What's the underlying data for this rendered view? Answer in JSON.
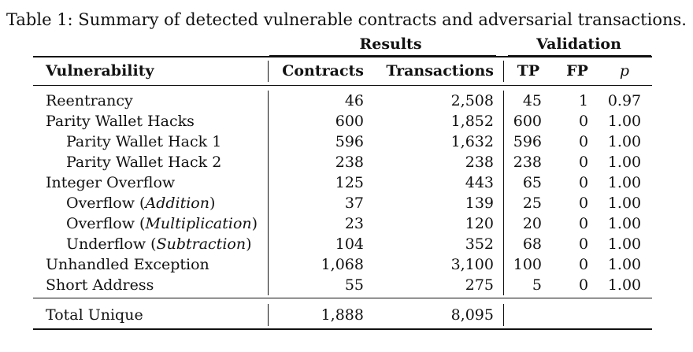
{
  "caption": "Table 1: Summary of detected vulnerable contracts and adversarial transactions.",
  "groups": {
    "results": "Results",
    "validation": "Validation"
  },
  "headers": {
    "vulnerability": "Vulnerability",
    "contracts": "Contracts",
    "transactions": "Transactions",
    "tp": "TP",
    "fp": "FP",
    "p": "p"
  },
  "rows": [
    {
      "name": "Reentrancy",
      "indent": false,
      "contracts": "46",
      "transactions": "2,508",
      "tp": "45",
      "fp": "1",
      "p": "0.97"
    },
    {
      "name": "Parity Wallet Hacks",
      "indent": false,
      "contracts": "600",
      "transactions": "1,852",
      "tp": "600",
      "fp": "0",
      "p": "1.00"
    },
    {
      "name": "Parity Wallet Hack 1",
      "indent": true,
      "contracts": "596",
      "transactions": "1,632",
      "tp": "596",
      "fp": "0",
      "p": "1.00"
    },
    {
      "name": "Parity Wallet Hack 2",
      "indent": true,
      "contracts": "238",
      "transactions": "238",
      "tp": "238",
      "fp": "0",
      "p": "1.00"
    },
    {
      "name": "Integer Overflow",
      "indent": false,
      "contracts": "125",
      "transactions": "443",
      "tp": "65",
      "fp": "0",
      "p": "1.00"
    },
    {
      "name": "Overflow (",
      "name_em": "Addition",
      "name_tail": ")",
      "indent": true,
      "contracts": "37",
      "transactions": "139",
      "tp": "25",
      "fp": "0",
      "p": "1.00"
    },
    {
      "name": "Overflow (",
      "name_em": "Multiplication",
      "name_tail": ")",
      "indent": true,
      "contracts": "23",
      "transactions": "120",
      "tp": "20",
      "fp": "0",
      "p": "1.00"
    },
    {
      "name": "Underflow (",
      "name_em": "Subtraction",
      "name_tail": ")",
      "indent": true,
      "contracts": "104",
      "transactions": "352",
      "tp": "68",
      "fp": "0",
      "p": "1.00"
    },
    {
      "name": "Unhandled Exception",
      "indent": false,
      "contracts": "1,068",
      "transactions": "3,100",
      "tp": "100",
      "fp": "0",
      "p": "1.00"
    },
    {
      "name": "Short Address",
      "indent": false,
      "contracts": "55",
      "transactions": "275",
      "tp": "5",
      "fp": "0",
      "p": "1.00"
    }
  ],
  "total": {
    "name": "Total Unique",
    "contracts": "1,888",
    "transactions": "8,095"
  }
}
